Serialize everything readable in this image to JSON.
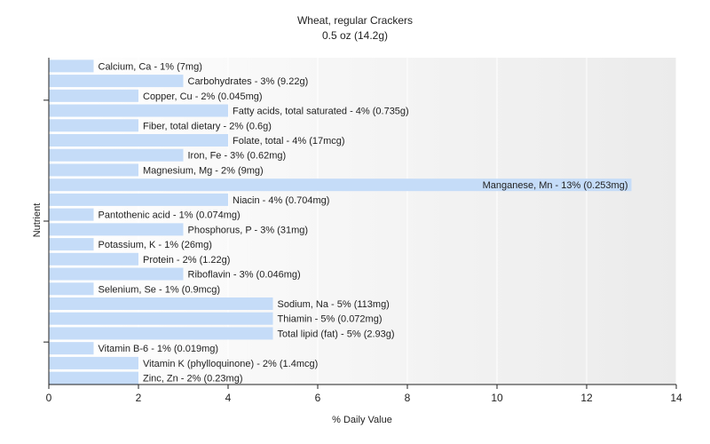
{
  "chart_data": {
    "type": "bar",
    "orientation": "horizontal",
    "title": "Wheat, regular Crackers",
    "subtitle": "0.5 oz (14.2g)",
    "xlabel": "% Daily Value",
    "ylabel": "Nutrient",
    "xlim": [
      0,
      14
    ],
    "xticks": [
      "0",
      "2",
      "4",
      "6",
      "8",
      "10",
      "12",
      "14"
    ],
    "grid": "vertical",
    "colors": {
      "bar": "#c5dcf8",
      "plot_bg_start": "#ffffff",
      "plot_bg_end": "#ebebeb",
      "grid": "#ffffff",
      "axis": "#222222"
    },
    "categories": [
      "Calcium, Ca",
      "Carbohydrates",
      "Copper, Cu",
      "Fatty acids, total saturated",
      "Fiber, total dietary",
      "Folate, total",
      "Iron, Fe",
      "Magnesium, Mg",
      "Manganese, Mn",
      "Niacin",
      "Pantothenic acid",
      "Phosphorus, P",
      "Potassium, K",
      "Protein",
      "Riboflavin",
      "Selenium, Se",
      "Sodium, Na",
      "Thiamin",
      "Total lipid (fat)",
      "Vitamin B-6",
      "Vitamin K (phylloquinone)",
      "Zinc, Zn"
    ],
    "values": [
      1,
      3,
      2,
      4,
      2,
      4,
      3,
      2,
      13,
      4,
      1,
      3,
      1,
      2,
      3,
      1,
      5,
      5,
      5,
      1,
      2,
      2
    ],
    "labels": [
      "Calcium, Ca - 1% (7mg)",
      "Carbohydrates - 3% (9.22g)",
      "Copper, Cu - 2% (0.045mg)",
      "Fatty acids, total saturated - 4% (0.735g)",
      "Fiber, total dietary - 2% (0.6g)",
      "Folate, total - 4% (17mcg)",
      "Iron, Fe - 3% (0.62mg)",
      "Magnesium, Mg - 2% (9mg)",
      "Manganese, Mn - 13% (0.253mg)",
      "Niacin - 4% (0.704mg)",
      "Pantothenic acid - 1% (0.074mg)",
      "Phosphorus, P - 3% (31mg)",
      "Potassium, K - 1% (26mg)",
      "Protein - 2% (1.22g)",
      "Riboflavin - 3% (0.046mg)",
      "Selenium, Se - 1% (0.9mcg)",
      "Sodium, Na - 5% (113mg)",
      "Thiamin - 5% (0.072mg)",
      "Total lipid (fat) - 5% (2.93g)",
      "Vitamin B-6 - 1% (0.019mg)",
      "Vitamin K (phylloquinone) - 2% (1.4mcg)",
      "Zinc, Zn - 2% (0.23mg)"
    ]
  }
}
